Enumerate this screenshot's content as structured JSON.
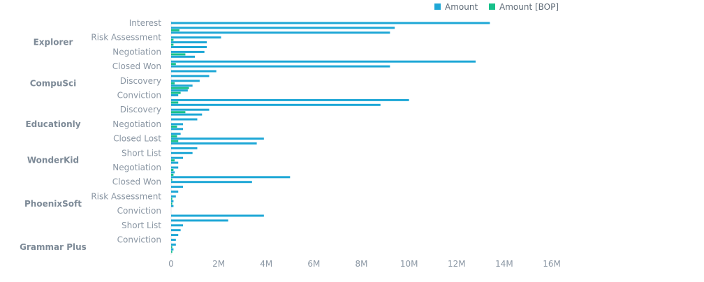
{
  "chart_data": {
    "type": "bar",
    "orientation": "horizontal",
    "legend": {
      "placement": "top-right",
      "items": [
        {
          "name": "Amount",
          "color": "#1ea7d6"
        },
        {
          "name": "Amount [BOP]",
          "color": "#17c08a"
        }
      ]
    },
    "x_axis": {
      "ticks": [
        "0",
        "2M",
        "4M",
        "6M",
        "8M",
        "10M",
        "12M",
        "14M",
        "16M"
      ],
      "range": [
        0,
        16000000
      ]
    },
    "grid": false,
    "groups": [
      {
        "name": "Explorer",
        "row_start": 0,
        "row_end": 9
      },
      {
        "name": "CompuSci",
        "row_start": 9,
        "row_end": 17
      },
      {
        "name": "Educationly",
        "row_start": 17,
        "row_end": 26
      },
      {
        "name": "WonderKid",
        "row_start": 26,
        "row_end": 32
      },
      {
        "name": "PhoenixSoft",
        "row_start": 32,
        "row_end": 44
      },
      {
        "name": "Grammar Plus",
        "row_start": 44,
        "row_end": 50
      }
    ],
    "category_labels": [
      {
        "text": "Interest",
        "row": 0
      },
      {
        "text": "Risk Assessment",
        "row": 3
      },
      {
        "text": "Negotiation",
        "row": 6
      },
      {
        "text": "Closed Won",
        "row": 9
      },
      {
        "text": "Discovery",
        "row": 12
      },
      {
        "text": "Conviction",
        "row": 15
      },
      {
        "text": "Discovery",
        "row": 18
      },
      {
        "text": "Negotiation",
        "row": 21
      },
      {
        "text": "Closed Lost",
        "row": 24
      },
      {
        "text": "Short List",
        "row": 27
      },
      {
        "text": "Negotiation",
        "row": 30
      },
      {
        "text": "Closed Won",
        "row": 33
      },
      {
        "text": "Risk Assessment",
        "row": 36
      },
      {
        "text": "Conviction",
        "row": 39
      },
      {
        "text": "Short List",
        "row": 42
      },
      {
        "text": "Conviction",
        "row": 45
      }
    ],
    "series": [
      {
        "name": "Amount",
        "values": [
          13400000,
          9400000,
          9200000,
          2100000,
          1500000,
          1500000,
          1400000,
          1000000,
          12800000,
          9200000,
          1900000,
          1600000,
          1200000,
          900000,
          700000,
          300000,
          10000000,
          8800000,
          1600000,
          1300000,
          1100000,
          500000,
          500000,
          400000,
          3900000,
          3600000,
          1100000,
          900000,
          500000,
          300000,
          300000,
          150000,
          5000000,
          3400000,
          500000,
          300000,
          200000,
          100000,
          100000,
          0,
          3900000,
          2400000,
          500000,
          400000,
          300000,
          200000,
          200000,
          100000
        ]
      },
      {
        "name": "Amount [BOP]",
        "values": [
          0,
          350000,
          0,
          100000,
          100000,
          0,
          600000,
          0,
          200000,
          0,
          0,
          0,
          150000,
          750000,
          400000,
          0,
          300000,
          0,
          600000,
          0,
          0,
          250000,
          0,
          250000,
          300000,
          0,
          0,
          0,
          150000,
          0,
          100000,
          100000,
          50000,
          0,
          0,
          0,
          50000,
          50000,
          0,
          0,
          0,
          0,
          0,
          0,
          0,
          0,
          50000,
          50000
        ]
      }
    ]
  }
}
